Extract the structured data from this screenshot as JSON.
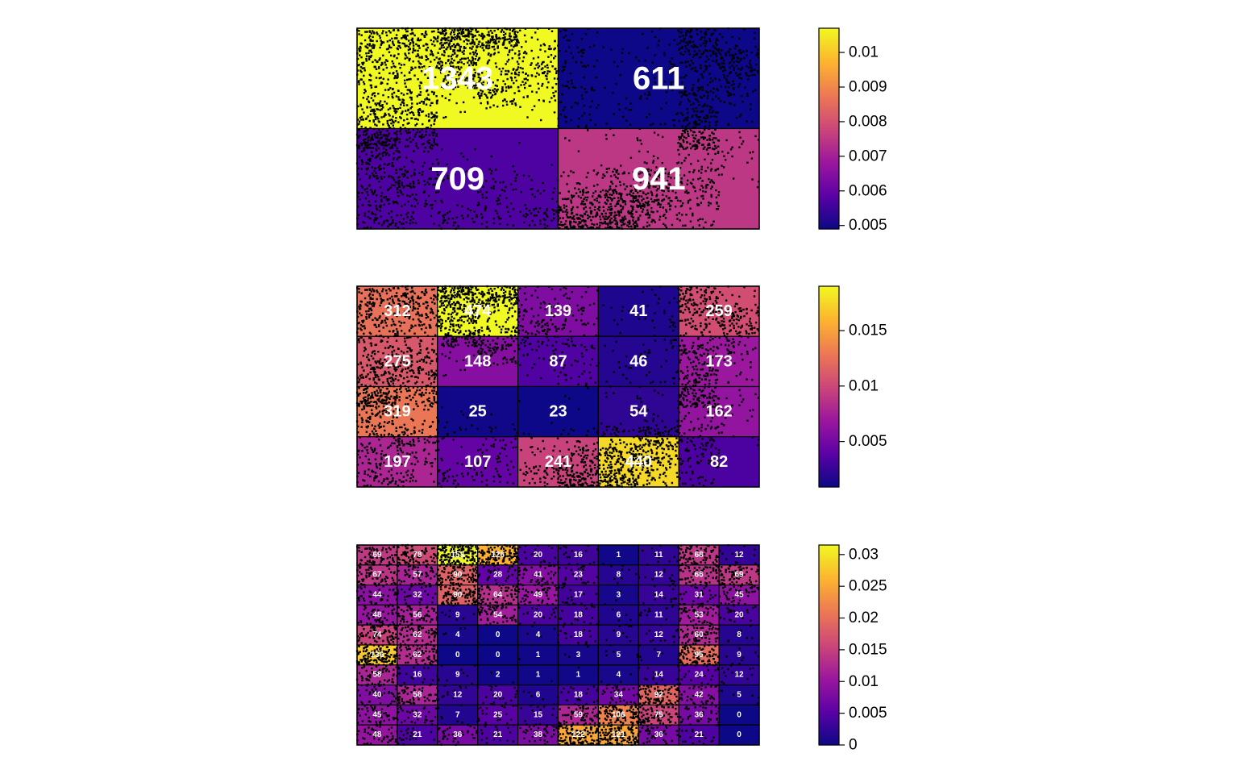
{
  "chart_data": [
    {
      "type": "heatmap",
      "title": "",
      "xlabel": "",
      "ylabel": "",
      "grid": [
        2,
        2
      ],
      "cell_labels": [
        [
          1343,
          611
        ],
        [
          709,
          941
        ]
      ],
      "intensity": [
        [
          0.0107,
          0.0049
        ],
        [
          0.0057,
          0.0075
        ]
      ],
      "colorbar": {
        "range": [
          0.0049,
          0.0107
        ],
        "ticks": [
          0.005,
          0.006,
          0.007,
          0.008,
          0.009,
          0.01
        ],
        "tick_labels": [
          "0.005",
          "0.006",
          "0.007",
          "0.008",
          "0.009",
          "0.01"
        ]
      }
    },
    {
      "type": "heatmap",
      "title": "",
      "xlabel": "",
      "ylabel": "",
      "grid": [
        4,
        5
      ],
      "cell_labels": [
        [
          312,
          474,
          139,
          41,
          259
        ],
        [
          275,
          148,
          87,
          46,
          173
        ],
        [
          319,
          25,
          23,
          54,
          162
        ],
        [
          197,
          107,
          241,
          440,
          82
        ]
      ],
      "intensity": [
        [
          0.0125,
          0.019,
          0.0056,
          0.0016,
          0.0104
        ],
        [
          0.011,
          0.0059,
          0.0035,
          0.0018,
          0.0069
        ],
        [
          0.0128,
          0.001,
          0.0009,
          0.0022,
          0.0065
        ],
        [
          0.0079,
          0.0043,
          0.0097,
          0.0176,
          0.0033
        ]
      ],
      "colorbar": {
        "range": [
          0.0009,
          0.019
        ],
        "ticks": [
          0.005,
          0.01,
          0.015
        ],
        "tick_labels": [
          "0.005",
          "0.01",
          "0.015"
        ]
      }
    },
    {
      "type": "heatmap",
      "title": "",
      "xlabel": "",
      "ylabel": "",
      "grid": [
        10,
        10
      ],
      "cell_labels": [
        [
          69,
          78,
          153,
          126,
          20,
          16,
          1,
          11,
          68,
          12
        ],
        [
          67,
          57,
          90,
          28,
          41,
          23,
          8,
          12,
          66,
          69
        ],
        [
          44,
          32,
          90,
          64,
          49,
          17,
          3,
          14,
          31,
          45
        ],
        [
          48,
          56,
          9,
          54,
          20,
          18,
          6,
          11,
          53,
          20
        ],
        [
          74,
          62,
          4,
          0,
          4,
          18,
          9,
          12,
          60,
          8
        ],
        [
          136,
          62,
          0,
          0,
          1,
          3,
          5,
          7,
          95,
          9
        ],
        [
          58,
          16,
          9,
          2,
          1,
          1,
          4,
          14,
          24,
          12
        ],
        [
          40,
          58,
          12,
          20,
          6,
          18,
          34,
          92,
          42,
          5
        ],
        [
          45,
          32,
          7,
          25,
          15,
          59,
          106,
          75,
          36,
          0
        ],
        [
          48,
          21,
          36,
          21,
          38,
          122,
          121,
          36,
          21,
          0
        ]
      ],
      "colorbar": {
        "range": [
          0,
          0.0315
        ],
        "value_per_count": 0.000206,
        "ticks": [
          0,
          0.005,
          0.01,
          0.015,
          0.02,
          0.025,
          0.03
        ],
        "tick_labels": [
          "0",
          "0.005",
          "0.01",
          "0.015",
          "0.02",
          "0.025",
          "0.03"
        ]
      }
    }
  ],
  "palette": [
    "#0d0887",
    "#5c01a6",
    "#9c179e",
    "#cc4778",
    "#ed7953",
    "#fdb42f",
    "#f0f921"
  ],
  "point_color": "#000000",
  "border_color": "#000000",
  "label_color": "#ffffff"
}
